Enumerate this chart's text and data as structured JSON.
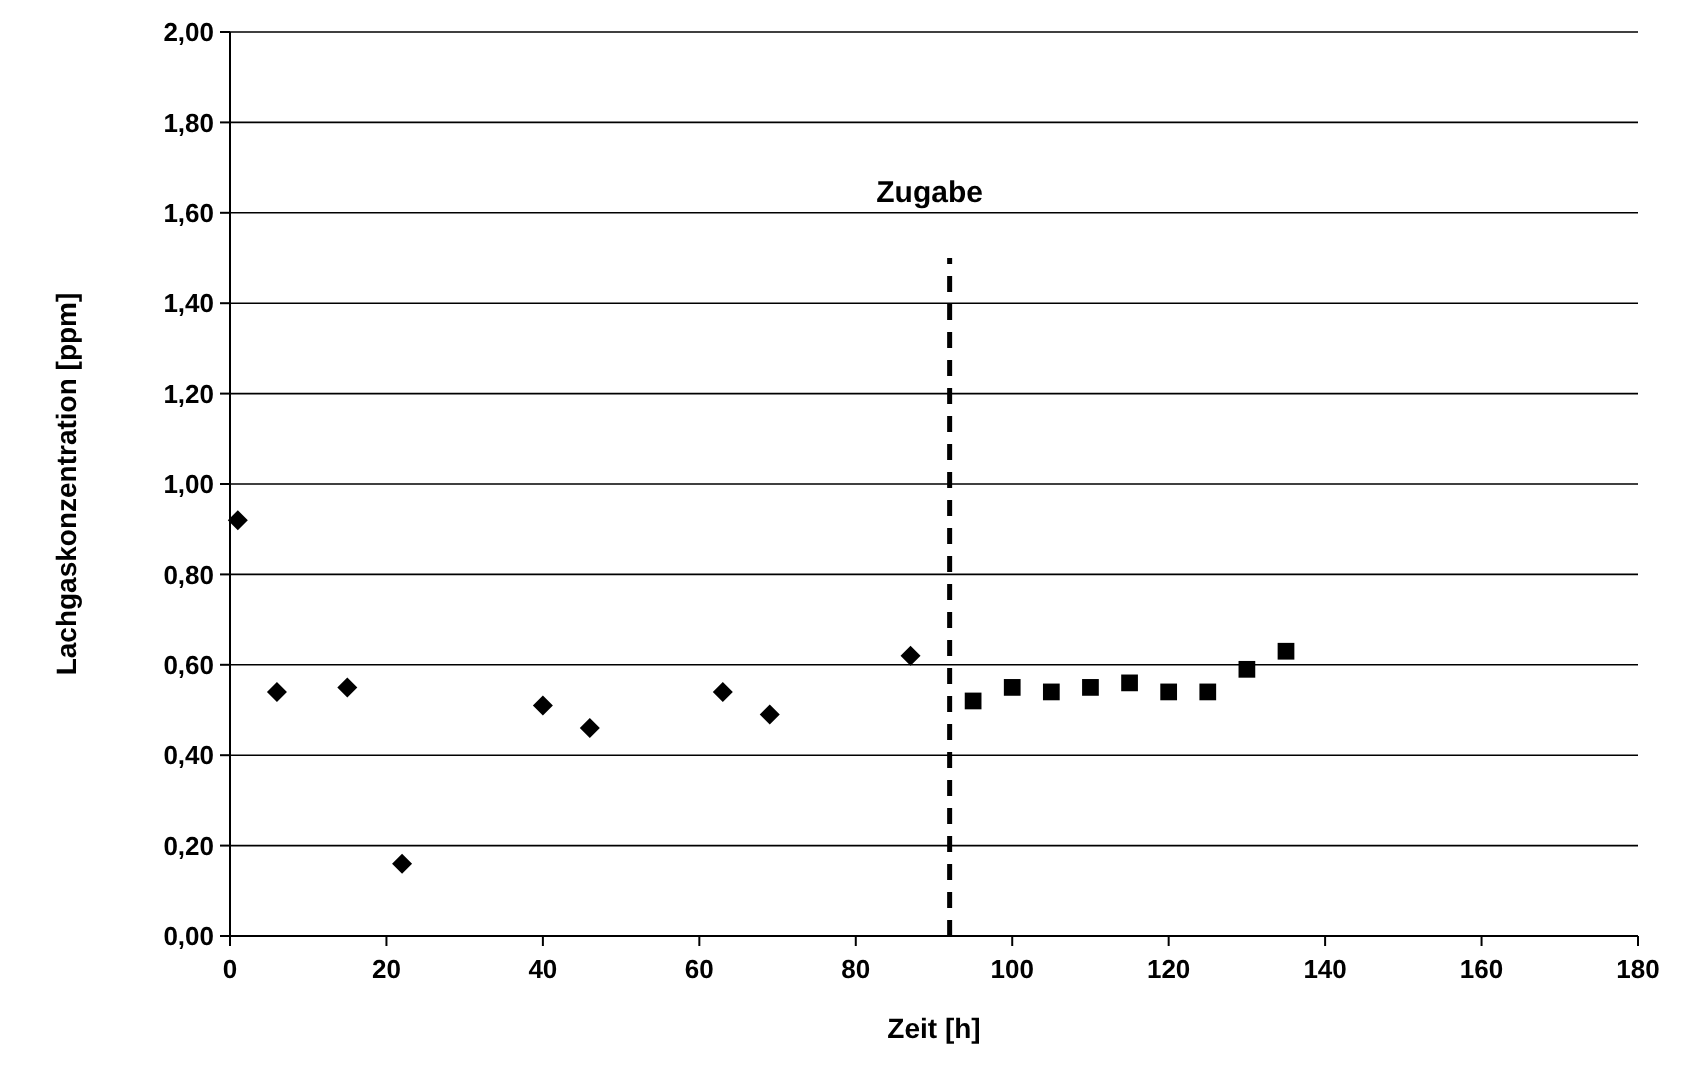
{
  "chart_data": {
    "type": "scatter",
    "xlabel": "Zeit [h]",
    "ylabel": "Lachgaskonzentration [ppm]",
    "xlim": [
      0,
      180
    ],
    "xticks": [
      0,
      20,
      40,
      60,
      80,
      100,
      120,
      140,
      160,
      180
    ],
    "ylim": [
      0,
      2
    ],
    "yticks": [
      {
        "value": 0,
        "label": "0,00"
      },
      {
        "value": 0.2,
        "label": "0,20"
      },
      {
        "value": 0.4,
        "label": "0,40"
      },
      {
        "value": 0.6,
        "label": "0,60"
      },
      {
        "value": 0.8,
        "label": "0,80"
      },
      {
        "value": 1,
        "label": "1,00"
      },
      {
        "value": 1.2,
        "label": "1,20"
      },
      {
        "value": 1.4,
        "label": "1,40"
      },
      {
        "value": 1.6,
        "label": "1,60"
      },
      {
        "value": 1.8,
        "label": "1,80"
      },
      {
        "value": 2,
        "label": "2,00"
      }
    ],
    "grid": "y",
    "ref_lines": [
      {
        "axis": "x",
        "value": 92,
        "label": "Zugabe",
        "line_style": "dashed",
        "color": "#000000"
      }
    ],
    "series": [
      {
        "color": "#000000",
        "marker": "diamond",
        "x": [
          1,
          6,
          15,
          22,
          40,
          46,
          63,
          69,
          87
        ],
        "values": [
          0.92,
          0.54,
          0.55,
          0.16,
          0.51,
          0.46,
          0.54,
          0.49,
          0.62
        ]
      },
      {
        "color": "#000000",
        "marker": "square",
        "x": [
          95,
          100,
          105,
          110,
          115,
          120,
          125,
          130,
          135
        ],
        "values": [
          0.52,
          0.55,
          0.54,
          0.55,
          0.56,
          0.54,
          0.54,
          0.59,
          0.63
        ]
      }
    ]
  }
}
